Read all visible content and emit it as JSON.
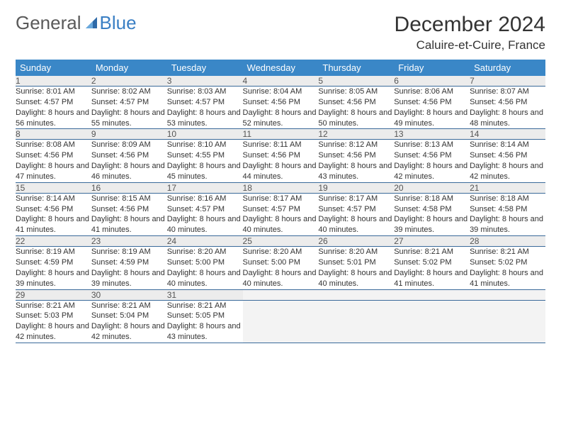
{
  "logo": {
    "text1": "General",
    "text2": "Blue"
  },
  "title": "December 2024",
  "location": "Caluire-et-Cuire, France",
  "colors": {
    "header_bg": "#3a87c7",
    "header_text": "#ffffff",
    "daynum_bg": "#ececec",
    "daynum_text": "#555555",
    "row_divider": "#3a6a9a",
    "body_text": "#333333",
    "title_text": "#333333",
    "logo_gray": "#5a5a5a",
    "logo_blue": "#3a7fc4",
    "empty_bg": "#f3f3f3"
  },
  "fonts": {
    "title_size": 30,
    "location_size": 17,
    "weekday_size": 13,
    "daynum_size": 12,
    "detail_size": 11
  },
  "weekdays": [
    "Sunday",
    "Monday",
    "Tuesday",
    "Wednesday",
    "Thursday",
    "Friday",
    "Saturday"
  ],
  "weeks": [
    [
      {
        "day": 1,
        "sunrise": "8:01 AM",
        "sunset": "4:57 PM",
        "daylight": "8 hours and 56 minutes."
      },
      {
        "day": 2,
        "sunrise": "8:02 AM",
        "sunset": "4:57 PM",
        "daylight": "8 hours and 55 minutes."
      },
      {
        "day": 3,
        "sunrise": "8:03 AM",
        "sunset": "4:57 PM",
        "daylight": "8 hours and 53 minutes."
      },
      {
        "day": 4,
        "sunrise": "8:04 AM",
        "sunset": "4:56 PM",
        "daylight": "8 hours and 52 minutes."
      },
      {
        "day": 5,
        "sunrise": "8:05 AM",
        "sunset": "4:56 PM",
        "daylight": "8 hours and 50 minutes."
      },
      {
        "day": 6,
        "sunrise": "8:06 AM",
        "sunset": "4:56 PM",
        "daylight": "8 hours and 49 minutes."
      },
      {
        "day": 7,
        "sunrise": "8:07 AM",
        "sunset": "4:56 PM",
        "daylight": "8 hours and 48 minutes."
      }
    ],
    [
      {
        "day": 8,
        "sunrise": "8:08 AM",
        "sunset": "4:56 PM",
        "daylight": "8 hours and 47 minutes."
      },
      {
        "day": 9,
        "sunrise": "8:09 AM",
        "sunset": "4:56 PM",
        "daylight": "8 hours and 46 minutes."
      },
      {
        "day": 10,
        "sunrise": "8:10 AM",
        "sunset": "4:55 PM",
        "daylight": "8 hours and 45 minutes."
      },
      {
        "day": 11,
        "sunrise": "8:11 AM",
        "sunset": "4:56 PM",
        "daylight": "8 hours and 44 minutes."
      },
      {
        "day": 12,
        "sunrise": "8:12 AM",
        "sunset": "4:56 PM",
        "daylight": "8 hours and 43 minutes."
      },
      {
        "day": 13,
        "sunrise": "8:13 AM",
        "sunset": "4:56 PM",
        "daylight": "8 hours and 42 minutes."
      },
      {
        "day": 14,
        "sunrise": "8:14 AM",
        "sunset": "4:56 PM",
        "daylight": "8 hours and 42 minutes."
      }
    ],
    [
      {
        "day": 15,
        "sunrise": "8:14 AM",
        "sunset": "4:56 PM",
        "daylight": "8 hours and 41 minutes."
      },
      {
        "day": 16,
        "sunrise": "8:15 AM",
        "sunset": "4:56 PM",
        "daylight": "8 hours and 41 minutes."
      },
      {
        "day": 17,
        "sunrise": "8:16 AM",
        "sunset": "4:57 PM",
        "daylight": "8 hours and 40 minutes."
      },
      {
        "day": 18,
        "sunrise": "8:17 AM",
        "sunset": "4:57 PM",
        "daylight": "8 hours and 40 minutes."
      },
      {
        "day": 19,
        "sunrise": "8:17 AM",
        "sunset": "4:57 PM",
        "daylight": "8 hours and 40 minutes."
      },
      {
        "day": 20,
        "sunrise": "8:18 AM",
        "sunset": "4:58 PM",
        "daylight": "8 hours and 39 minutes."
      },
      {
        "day": 21,
        "sunrise": "8:18 AM",
        "sunset": "4:58 PM",
        "daylight": "8 hours and 39 minutes."
      }
    ],
    [
      {
        "day": 22,
        "sunrise": "8:19 AM",
        "sunset": "4:59 PM",
        "daylight": "8 hours and 39 minutes."
      },
      {
        "day": 23,
        "sunrise": "8:19 AM",
        "sunset": "4:59 PM",
        "daylight": "8 hours and 39 minutes."
      },
      {
        "day": 24,
        "sunrise": "8:20 AM",
        "sunset": "5:00 PM",
        "daylight": "8 hours and 40 minutes."
      },
      {
        "day": 25,
        "sunrise": "8:20 AM",
        "sunset": "5:00 PM",
        "daylight": "8 hours and 40 minutes."
      },
      {
        "day": 26,
        "sunrise": "8:20 AM",
        "sunset": "5:01 PM",
        "daylight": "8 hours and 40 minutes."
      },
      {
        "day": 27,
        "sunrise": "8:21 AM",
        "sunset": "5:02 PM",
        "daylight": "8 hours and 41 minutes."
      },
      {
        "day": 28,
        "sunrise": "8:21 AM",
        "sunset": "5:02 PM",
        "daylight": "8 hours and 41 minutes."
      }
    ],
    [
      {
        "day": 29,
        "sunrise": "8:21 AM",
        "sunset": "5:03 PM",
        "daylight": "8 hours and 42 minutes."
      },
      {
        "day": 30,
        "sunrise": "8:21 AM",
        "sunset": "5:04 PM",
        "daylight": "8 hours and 42 minutes."
      },
      {
        "day": 31,
        "sunrise": "8:21 AM",
        "sunset": "5:05 PM",
        "daylight": "8 hours and 43 minutes."
      },
      null,
      null,
      null,
      null
    ]
  ],
  "labels": {
    "sunrise": "Sunrise:",
    "sunset": "Sunset:",
    "daylight": "Daylight:"
  }
}
